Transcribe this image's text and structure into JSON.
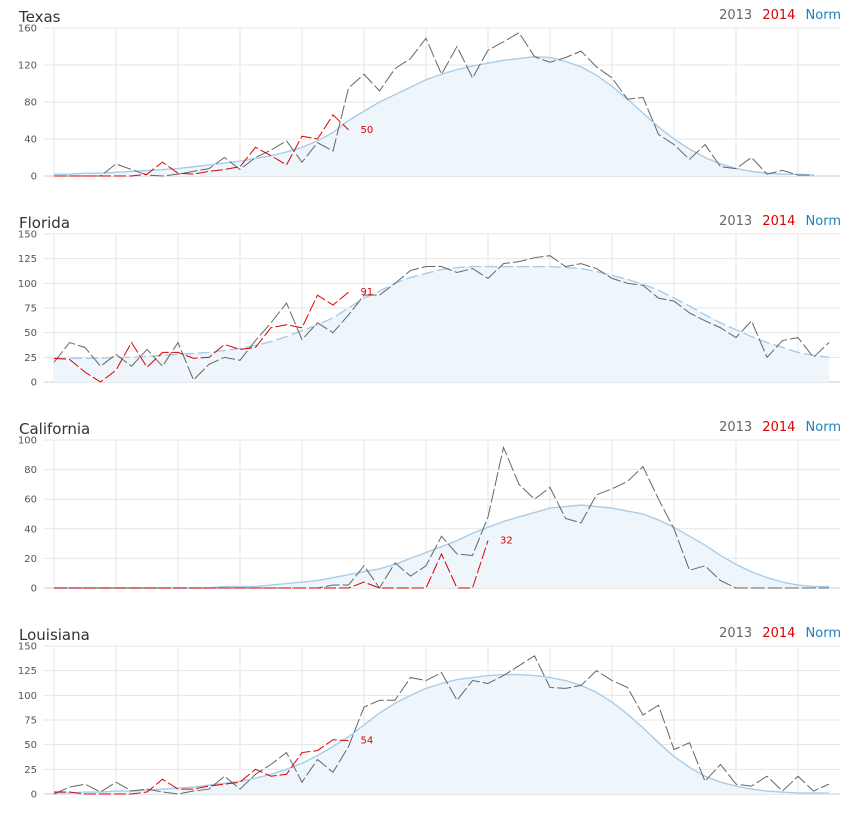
{
  "legend": {
    "y2013": "2013",
    "y2014": "2014",
    "norm": "Norm"
  },
  "colors": {
    "y2013": "#666666",
    "y2014": "#dd0000",
    "norm": "#a8cdea",
    "norm_fill": "#eef5fb",
    "grid": "#e6e6e6"
  },
  "chart_data": [
    {
      "type": "line",
      "title": "Texas",
      "ylim": [
        0,
        160
      ],
      "yticks": [
        "0",
        "40",
        "80",
        "120",
        "160"
      ],
      "grid": true,
      "legend_position": "top-right",
      "norm_style": "solid",
      "series": [
        {
          "name": "2013",
          "values": [
            0,
            0,
            0,
            0,
            13,
            7,
            1,
            0,
            2,
            5,
            8,
            20,
            7,
            20,
            28,
            38,
            15,
            36,
            27,
            95,
            110,
            92,
            116,
            127,
            149,
            110,
            140,
            106,
            136,
            145,
            155,
            129,
            123,
            128,
            135,
            118,
            106,
            83,
            85,
            45,
            34,
            18,
            34,
            10,
            8,
            20,
            2,
            6,
            1,
            1
          ]
        },
        {
          "name": "2014",
          "values": [
            0,
            0,
            0,
            0,
            0,
            0,
            2,
            15,
            3,
            2,
            5,
            7,
            10,
            31,
            22,
            12,
            43,
            40,
            66,
            50
          ],
          "end_label": "50"
        },
        {
          "name": "Norm",
          "values": [
            2,
            2,
            3,
            3,
            4,
            5,
            6,
            7,
            8,
            10,
            12,
            14,
            16,
            19,
            22,
            26,
            31,
            38,
            47,
            60,
            70,
            80,
            88,
            96,
            104,
            110,
            115,
            119,
            122,
            125,
            127,
            129,
            128,
            124,
            118,
            109,
            97,
            83,
            68,
            53,
            40,
            29,
            20,
            13,
            8,
            5,
            3,
            2,
            2,
            1
          ]
        }
      ]
    },
    {
      "type": "line",
      "title": "Florida",
      "ylim": [
        0,
        150
      ],
      "yticks": [
        "0",
        "25",
        "50",
        "75",
        "100",
        "125",
        "150"
      ],
      "grid": true,
      "legend_position": "top-right",
      "norm_style": "dashed",
      "series": [
        {
          "name": "2013",
          "values": [
            20,
            40,
            35,
            16,
            28,
            16,
            33,
            16,
            40,
            2,
            18,
            25,
            22,
            42,
            60,
            80,
            43,
            60,
            50,
            68,
            88,
            88,
            100,
            113,
            117,
            117,
            111,
            115,
            105,
            120,
            122,
            126,
            128,
            117,
            120,
            115,
            105,
            100,
            98,
            85,
            82,
            70,
            62,
            55,
            45,
            62,
            25,
            42,
            45,
            25,
            40
          ]
        },
        {
          "name": "2014",
          "values": [
            24,
            23,
            10,
            0,
            12,
            40,
            15,
            30,
            30,
            24,
            25,
            38,
            33,
            35,
            55,
            58,
            55,
            88,
            78,
            91
          ],
          "end_label": "91"
        },
        {
          "name": "Norm",
          "values": [
            24,
            24,
            24,
            24,
            25,
            25,
            26,
            27,
            28,
            29,
            30,
            32,
            34,
            37,
            41,
            46,
            52,
            58,
            65,
            75,
            85,
            92,
            100,
            106,
            110,
            114,
            116,
            117,
            117,
            117,
            117,
            117,
            117,
            116,
            115,
            112,
            108,
            104,
            99,
            93,
            85,
            77,
            68,
            60,
            53,
            46,
            40,
            35,
            30,
            27,
            25,
            24,
            22,
            21,
            20
          ]
        }
      ]
    },
    {
      "type": "line",
      "title": "California",
      "ylim": [
        0,
        100
      ],
      "yticks": [
        "0",
        "20",
        "40",
        "60",
        "80",
        "100"
      ],
      "grid": true,
      "legend_position": "top-right",
      "norm_style": "solid",
      "series": [
        {
          "name": "2013",
          "values": [
            0,
            0,
            0,
            0,
            0,
            0,
            0,
            0,
            0,
            0,
            0,
            0,
            0,
            0,
            0,
            0,
            0,
            0,
            2,
            2,
            15,
            0,
            17,
            8,
            15,
            35,
            23,
            22,
            48,
            95,
            70,
            60,
            68,
            47,
            44,
            63,
            67,
            72,
            82,
            60,
            40,
            12,
            15,
            5,
            0,
            0,
            0,
            0,
            0,
            0,
            0,
            0,
            0,
            0,
            0,
            0,
            0,
            0
          ]
        },
        {
          "name": "2014",
          "values": [
            0,
            0,
            0,
            0,
            0,
            0,
            0,
            0,
            0,
            0,
            0,
            0,
            0,
            0,
            0,
            0,
            0,
            0,
            0,
            0,
            4,
            0,
            0,
            0,
            0,
            23,
            0,
            0,
            32
          ],
          "end_label": "32"
        },
        {
          "name": "Norm",
          "values": [
            0,
            0,
            0,
            0,
            0,
            0,
            0,
            0,
            0,
            0,
            0,
            1,
            1,
            1,
            2,
            3,
            4,
            5,
            7,
            9,
            11,
            13,
            16,
            20,
            24,
            28,
            32,
            37,
            41,
            45,
            48,
            51,
            54,
            55,
            56,
            55,
            54,
            52,
            50,
            46,
            41,
            35,
            29,
            22,
            16,
            11,
            7,
            4,
            2,
            1,
            1,
            0,
            0,
            0,
            0,
            0,
            0,
            0,
            0
          ]
        }
      ]
    },
    {
      "type": "line",
      "title": "Louisiana",
      "ylim": [
        0,
        150
      ],
      "yticks": [
        "0",
        "25",
        "50",
        "75",
        "100",
        "125",
        "150"
      ],
      "grid": true,
      "legend_position": "top-right",
      "norm_style": "solid",
      "series": [
        {
          "name": "2013",
          "values": [
            0,
            7,
            10,
            2,
            12,
            3,
            5,
            2,
            0,
            3,
            5,
            18,
            5,
            20,
            30,
            42,
            12,
            35,
            22,
            48,
            88,
            95,
            95,
            118,
            115,
            123,
            95,
            115,
            112,
            120,
            130,
            140,
            108,
            107,
            110,
            125,
            115,
            108,
            80,
            90,
            45,
            52,
            13,
            30,
            10,
            8,
            18,
            3,
            18,
            3,
            10,
            2
          ]
        },
        {
          "name": "2014",
          "values": [
            2,
            2,
            0,
            0,
            0,
            0,
            2,
            15,
            5,
            5,
            8,
            10,
            12,
            25,
            18,
            20,
            42,
            44,
            55,
            54
          ],
          "end_label": "54"
        },
        {
          "name": "Norm",
          "values": [
            1,
            1,
            2,
            2,
            3,
            3,
            4,
            5,
            6,
            7,
            9,
            11,
            13,
            16,
            20,
            25,
            31,
            39,
            48,
            58,
            70,
            82,
            92,
            100,
            107,
            112,
            116,
            118,
            120,
            121,
            121,
            120,
            118,
            115,
            110,
            103,
            93,
            81,
            67,
            52,
            38,
            27,
            18,
            12,
            8,
            5,
            3,
            2,
            1,
            1,
            1
          ]
        }
      ]
    }
  ]
}
